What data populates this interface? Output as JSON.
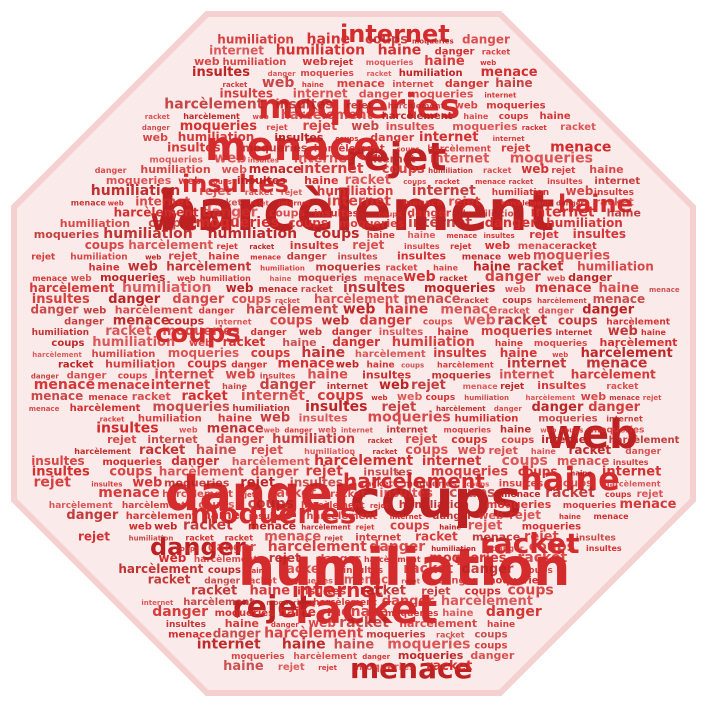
{
  "colors": {
    "background": "#ffffff",
    "text": "#d42c2c",
    "text_dark": "#bd2121",
    "octagon_fill": "#fbeaea",
    "octagon_edge": "#f5d0d0"
  },
  "cloud": {
    "shape": "octagon-stop-sign",
    "large_words": [
      "harcèlement",
      "humiliation",
      "danger",
      "coups",
      "racket",
      "menace",
      "rejet",
      "moqueries",
      "internet",
      "web",
      "haine",
      "insultes"
    ],
    "vocabulary": [
      "harcèlement",
      "humiliation",
      "danger",
      "coups",
      "racket",
      "menace",
      "rejet",
      "moqueries",
      "internet",
      "web",
      "haine",
      "insultes"
    ]
  }
}
